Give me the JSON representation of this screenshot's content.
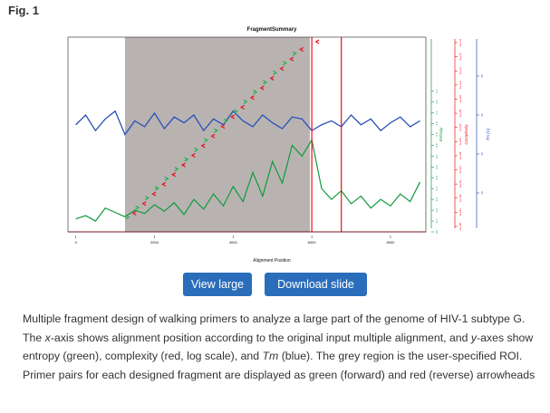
{
  "figure": {
    "label": "Fig. 1"
  },
  "buttons": {
    "view_large": "View large",
    "download_slide": "Download slide"
  },
  "caption": {
    "part1": "Multiple fragment design of walking primers to analyze a large part of the genome of HIV-1 subtype G. The ",
    "x_italic": "x",
    "part2": "-axis shows alignment position according to the original input multiple alignment, and ",
    "y_italic": "y",
    "part3": "-axes show entropy (green), complexity (red, log scale), and ",
    "tm_italic": "Tm",
    "part4": " (blue). The grey region is the user-specified ROI. Primer pairs for each designed fragment are displayed as green (forward) and red (reverse) arrowheads"
  },
  "colors": {
    "entropy": "#0f9a3c",
    "complexity": "#e8101b",
    "tm": "#2a50b8",
    "roi": "#b8b3b1",
    "button": "#2a6ebb"
  },
  "chart_data": {
    "type": "line",
    "title": "FragmentSummary",
    "xlabel": "Alignment Position",
    "xlim": [
      -200,
      8900
    ],
    "x_ticks": [
      0,
      2000,
      4000,
      6000,
      8000
    ],
    "x_tick_labels": [
      "0",
      "2000",
      "4000",
      "6000",
      "8000"
    ],
    "roi": [
      1250,
      5950
    ],
    "y_axes": [
      {
        "name": "Entropy",
        "color": "#0f9a3c",
        "ylim": [
          0,
          1.8
        ],
        "ticks": [
          0.0,
          0.1,
          0.2,
          0.3,
          0.4,
          0.5,
          0.6,
          0.7,
          0.8,
          0.9,
          1.0,
          1.1,
          1.2,
          1.3
        ],
        "tick_labels": [
          "0.0",
          "0.1",
          "0.2",
          "0.3",
          "0.4",
          "0.5",
          "0.6",
          "0.7",
          "0.8",
          "0.9",
          "1.0",
          "1.1",
          "1.2",
          "1.3"
        ]
      },
      {
        "name": "Complexity",
        "color": "#e8101b",
        "scale": "log",
        "ticks": [
          "1e+00",
          "1e+01",
          "1e+02",
          "1e+03",
          "1e+04",
          "1e+05",
          "1e+06",
          "1e+07",
          "1e+08",
          "1e+09",
          "1e+10",
          "1e+11",
          "1e+12",
          "1e+13"
        ]
      },
      {
        "name": "Tm (C)",
        "color": "#2a50b8",
        "ylim": [
          0,
          100
        ],
        "ticks": [
          20,
          40,
          60,
          80
        ],
        "tick_labels": [
          "20",
          "40",
          "60",
          "80"
        ]
      }
    ],
    "series": [
      {
        "name": "Entropy",
        "axis": "Entropy",
        "color": "#0f9a3c",
        "x": [
          0,
          250,
          500,
          750,
          1000,
          1250,
          1500,
          1750,
          2000,
          2250,
          2500,
          2750,
          3000,
          3250,
          3500,
          3750,
          4000,
          4250,
          4500,
          4750,
          5000,
          5250,
          5500,
          5750,
          6000,
          6250,
          6500,
          6750,
          7000,
          7250,
          7500,
          7750,
          8000,
          8250,
          8500,
          8750
        ],
        "y": [
          0.12,
          0.15,
          0.1,
          0.22,
          0.18,
          0.14,
          0.2,
          0.17,
          0.25,
          0.19,
          0.27,
          0.16,
          0.3,
          0.21,
          0.35,
          0.24,
          0.42,
          0.28,
          0.55,
          0.33,
          0.65,
          0.45,
          0.8,
          0.7,
          0.85,
          0.4,
          0.3,
          0.38,
          0.26,
          0.33,
          0.22,
          0.3,
          0.24,
          0.35,
          0.28,
          0.46
        ]
      },
      {
        "name": "Tm",
        "axis": "Tm (C)",
        "color": "#2a50b8",
        "x": [
          0,
          250,
          500,
          750,
          1000,
          1250,
          1500,
          1750,
          2000,
          2250,
          2500,
          2750,
          3000,
          3250,
          3500,
          3750,
          4000,
          4250,
          4500,
          4750,
          5000,
          5250,
          5500,
          5750,
          6000,
          6250,
          6500,
          6750,
          7000,
          7250,
          7500,
          7750,
          8000,
          8250,
          8500,
          8750
        ],
        "y": [
          55,
          60,
          52,
          58,
          62,
          50,
          57,
          54,
          61,
          53,
          59,
          56,
          60,
          52,
          58,
          55,
          62,
          57,
          54,
          60,
          56,
          53,
          59,
          58,
          52,
          55,
          57,
          54,
          60,
          55,
          58,
          52,
          56,
          59,
          54,
          57
        ]
      }
    ],
    "complexity_baseline_label": "1e+00",
    "primers_forward": {
      "color": "#22b14c",
      "positions": [
        1300,
        1550,
        1800,
        2050,
        2300,
        2550,
        2800,
        3050,
        3300,
        3550,
        3800,
        4050,
        4300,
        4550,
        4800,
        5050,
        5300,
        5550
      ]
    },
    "primers_reverse": {
      "color": "#e8101b",
      "positions": [
        1500,
        1750,
        2000,
        2250,
        2500,
        2750,
        3000,
        3250,
        3500,
        3750,
        4000,
        4250,
        4500,
        4750,
        5000,
        5250,
        5500,
        5750,
        6150
      ]
    },
    "vertical_markers": [
      {
        "x": 6000,
        "color": "#e8101b"
      },
      {
        "x": 6750,
        "color": "#e8101b"
      }
    ]
  }
}
